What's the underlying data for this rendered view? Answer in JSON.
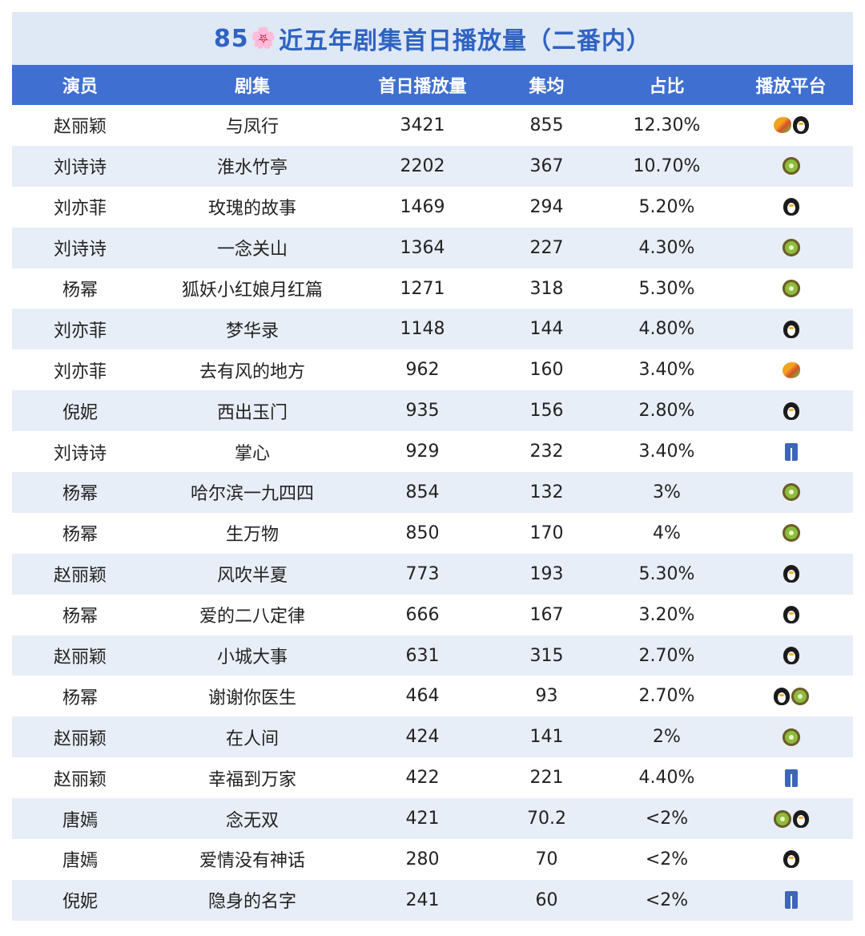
{
  "title": {
    "prefix": "85",
    "flower": "🌸",
    "text": "近五年剧集首日播放量（二番内）"
  },
  "headers": [
    "演员",
    "剧集",
    "首日播放量",
    "集均",
    "占比",
    "播放平台"
  ],
  "rows": [
    {
      "actor": "赵丽颖",
      "drama": "与凤行",
      "first_day": "3421",
      "avg": "855",
      "share": "12.30%",
      "platforms": [
        "mango",
        "penguin"
      ]
    },
    {
      "actor": "刘诗诗",
      "drama": "淮水竹亭",
      "first_day": "2202",
      "avg": "367",
      "share": "10.70%",
      "platforms": [
        "kiwi"
      ]
    },
    {
      "actor": "刘亦菲",
      "drama": "玫瑰的故事",
      "first_day": "1469",
      "avg": "294",
      "share": "5.20%",
      "platforms": [
        "penguin"
      ]
    },
    {
      "actor": "刘诗诗",
      "drama": "一念关山",
      "first_day": "1364",
      "avg": "227",
      "share": "4.30%",
      "platforms": [
        "kiwi"
      ]
    },
    {
      "actor": "杨幂",
      "drama": "狐妖小红娘月红篇",
      "first_day": "1271",
      "avg": "318",
      "share": "5.30%",
      "platforms": [
        "kiwi"
      ]
    },
    {
      "actor": "刘亦菲",
      "drama": "梦华录",
      "first_day": "1148",
      "avg": "144",
      "share": "4.80%",
      "platforms": [
        "penguin"
      ]
    },
    {
      "actor": "刘亦菲",
      "drama": "去有风的地方",
      "first_day": "962",
      "avg": "160",
      "share": "3.40%",
      "platforms": [
        "mango"
      ]
    },
    {
      "actor": "倪妮",
      "drama": "西出玉门",
      "first_day": "935",
      "avg": "156",
      "share": "2.80%",
      "platforms": [
        "penguin"
      ]
    },
    {
      "actor": "刘诗诗",
      "drama": "掌心",
      "first_day": "929",
      "avg": "232",
      "share": "3.40%",
      "platforms": [
        "jeans"
      ]
    },
    {
      "actor": "杨幂",
      "drama": "哈尔滨一九四四",
      "first_day": "854",
      "avg": "132",
      "share": "3%",
      "platforms": [
        "kiwi"
      ]
    },
    {
      "actor": "杨幂",
      "drama": "生万物",
      "first_day": "850",
      "avg": "170",
      "share": "4%",
      "platforms": [
        "kiwi"
      ]
    },
    {
      "actor": "赵丽颖",
      "drama": "风吹半夏",
      "first_day": "773",
      "avg": "193",
      "share": "5.30%",
      "platforms": [
        "penguin"
      ]
    },
    {
      "actor": "杨幂",
      "drama": "爱的二八定律",
      "first_day": "666",
      "avg": "167",
      "share": "3.20%",
      "platforms": [
        "penguin"
      ]
    },
    {
      "actor": "赵丽颖",
      "drama": "小城大事",
      "first_day": "631",
      "avg": "315",
      "share": "2.70%",
      "platforms": [
        "penguin"
      ]
    },
    {
      "actor": "杨幂",
      "drama": "谢谢你医生",
      "first_day": "464",
      "avg": "93",
      "share": "2.70%",
      "platforms": [
        "penguin",
        "kiwi"
      ]
    },
    {
      "actor": "赵丽颖",
      "drama": "在人间",
      "first_day": "424",
      "avg": "141",
      "share": "2%",
      "platforms": [
        "kiwi"
      ]
    },
    {
      "actor": "赵丽颖",
      "drama": "幸福到万家",
      "first_day": "422",
      "avg": "221",
      "share": "4.40%",
      "platforms": [
        "jeans"
      ]
    },
    {
      "actor": "唐嫣",
      "drama": "念无双",
      "first_day": "421",
      "avg": "70.2",
      "share": "<2%",
      "platforms": [
        "kiwi",
        "penguin"
      ]
    },
    {
      "actor": "唐嫣",
      "drama": "爱情没有神话",
      "first_day": "280",
      "avg": "70",
      "share": "<2%",
      "platforms": [
        "penguin"
      ]
    },
    {
      "actor": "倪妮",
      "drama": "隐身的名字",
      "first_day": "241",
      "avg": "60",
      "share": "<2%",
      "platforms": [
        "jeans"
      ]
    }
  ],
  "platform_icons": {
    "mango": "mango-icon",
    "penguin": "penguin-icon",
    "kiwi": "kiwi-icon",
    "jeans": "jeans-icon"
  },
  "colors": {
    "title_bg": "#dfe8f5",
    "title_text": "#2f63c2",
    "header_bg": "#3f6fd0",
    "header_text": "#ffffff",
    "alt_row_bg": "#e8eef7"
  }
}
